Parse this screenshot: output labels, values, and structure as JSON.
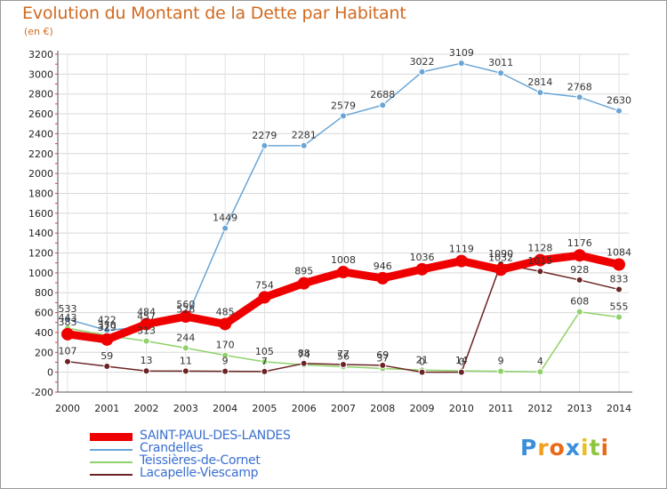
{
  "title": "Evolution du Montant de la Dette par Habitant",
  "unit_label": "(en €)",
  "logo": {
    "letters": [
      "P",
      "r",
      "o",
      "x",
      "i",
      "t",
      "i"
    ],
    "colors": [
      "#3a8fd8",
      "#f0a020",
      "#e86a1a",
      "#3a8fd8",
      "#e8c020",
      "#8cc63e",
      "#e86a1a"
    ]
  },
  "chart_data": {
    "type": "line",
    "title": "Evolution du Montant de la Dette par Habitant",
    "ylabel": "(en €)",
    "xlabel": "",
    "x": [
      "2000",
      "2001",
      "2002",
      "2003",
      "2004",
      "2005",
      "2006",
      "2007",
      "2008",
      "2009",
      "2010",
      "2011",
      "2012",
      "2013",
      "2014"
    ],
    "ylim": [
      -200,
      3200
    ],
    "yticks": [
      "-200",
      "0",
      "200",
      "400",
      "600",
      "800",
      "1000",
      "1200",
      "1400",
      "1600",
      "1800",
      "2000",
      "2200",
      "2400",
      "2600",
      "2800",
      "3000",
      "3200"
    ],
    "grid": true,
    "legend": "bottom",
    "series": [
      {
        "name": "SAINT-PAUL-DES-LANDES",
        "color": "#ee0000",
        "values": [
          383,
          329,
          484,
          560,
          485,
          754,
          895,
          1008,
          946,
          1036,
          1119,
          1032,
          1128,
          1176,
          1084
        ],
        "labels": [
          "383",
          "329",
          "484",
          "560",
          "485",
          "754",
          "895",
          "1008",
          "946",
          "1036",
          "1119",
          "1032",
          "1128",
          "1176",
          "1084"
        ]
      },
      {
        "name": "Crandelles",
        "color": "#6aa5d6",
        "values": [
          533,
          422,
          457,
          528,
          1449,
          2279,
          2281,
          2579,
          2688,
          3022,
          3109,
          3011,
          2814,
          2768,
          2630
        ],
        "labels": [
          "533",
          "422",
          "457",
          "528",
          "1449",
          "2279",
          "2281",
          "2579",
          "2688",
          "3022",
          "3109",
          "3011",
          "2814",
          "2768",
          "2630"
        ]
      },
      {
        "name": "Teissières-de-Cornet",
        "color": "#8fd16a",
        "values": [
          443,
          370,
          313,
          244,
          170,
          105,
          74,
          56,
          37,
          21,
          14,
          9,
          4,
          608,
          555
        ],
        "labels": [
          "443",
          "370",
          "313",
          "244",
          "170",
          "105",
          "74",
          "56",
          "37",
          "21",
          "14",
          "9",
          "4",
          "608",
          "555"
        ]
      },
      {
        "name": "Lacapelle-Viescamp",
        "color": "#6b2323",
        "values": [
          107,
          59,
          13,
          11,
          9,
          7,
          88,
          77,
          69,
          0,
          0,
          1090,
          1015,
          928,
          833
        ],
        "labels": [
          "107",
          "59",
          "13",
          "11",
          "9",
          "7",
          "88",
          "77",
          "69",
          "0",
          "0",
          "1090",
          "1015",
          "928",
          "833"
        ]
      }
    ]
  }
}
